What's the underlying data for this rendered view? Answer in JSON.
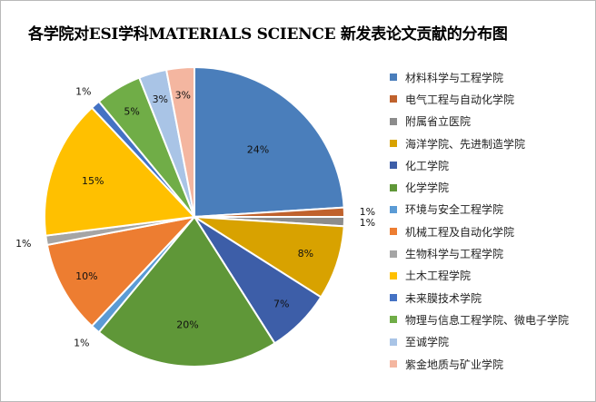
{
  "chart_data": {
    "type": "pie",
    "title": "各学院对ESI学科MATERIALS SCIENCE 新发表论文贡献的分布图",
    "categories": [
      "材料科学与工程学院",
      "电气工程与自动化学院",
      "附属省立医院",
      "海洋学院、先进制造学院",
      "化工学院",
      "化学学院",
      "环境与安全工程学院",
      "机械工程及自动化学院",
      "生物科学与工程学院",
      "土木工程学院",
      "未来膜技术学院",
      "物理与信息工程学院、微电子学院",
      "至诚学院",
      "紫金地质与矿业学院"
    ],
    "values": [
      24,
      1,
      1,
      8,
      7,
      20,
      1,
      10,
      1,
      15,
      1,
      5,
      3,
      3
    ],
    "data_labels": [
      "24%",
      "1%",
      "1%",
      "8%",
      "7%",
      "20%",
      "1%",
      "10%",
      "1%",
      "15%",
      "1%",
      "5%",
      "3%",
      "3%"
    ],
    "colors": [
      "#4a7ebb",
      "#c0622d",
      "#8c8c8c",
      "#d8a200",
      "#3d5ea8",
      "#5f9738",
      "#5b9bd5",
      "#ed7d31",
      "#a5a5a5",
      "#ffc000",
      "#4472c4",
      "#70ad47",
      "#a9c4e6",
      "#f4b6a0"
    ],
    "legend_position": "right"
  }
}
